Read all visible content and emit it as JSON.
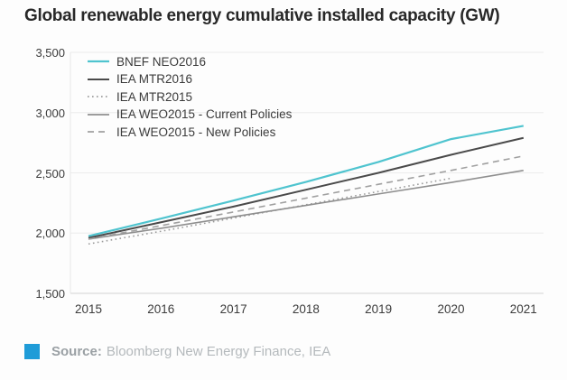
{
  "header": {
    "title": "Global renewable energy cumulative installed capacity (GW)"
  },
  "chart_data": {
    "type": "line",
    "title": "Global renewable energy cumulative installed capacity (GW)",
    "categories": [
      "2015",
      "2016",
      "2017",
      "2018",
      "2019",
      "2020",
      "2021"
    ],
    "series": [
      {
        "name": "BNEF NEO2016",
        "color": "#4fc4cf",
        "line_style": "solid",
        "stroke_width": 2.2,
        "values": [
          1975,
          2120,
          2270,
          2425,
          2590,
          2780,
          2890
        ]
      },
      {
        "name": "IEA MTR2016",
        "color": "#4a4a4a",
        "line_style": "solid",
        "stroke_width": 2,
        "values": [
          1960,
          2090,
          2220,
          2360,
          2500,
          2650,
          2790
        ]
      },
      {
        "name": "IEA MTR2015",
        "color": "#9b9b9b",
        "line_style": "dotted",
        "stroke_width": 1.6,
        "values": [
          1910,
          2015,
          2125,
          2235,
          2345,
          2455,
          null
        ]
      },
      {
        "name": "IEA WEO2015 - Current Policies",
        "color": "#8f8f8f",
        "line_style": "solid",
        "stroke_width": 1.6,
        "values": [
          1950,
          2040,
          2135,
          2230,
          2325,
          2420,
          2520
        ]
      },
      {
        "name": "IEA WEO2015 - New Policies",
        "color": "#a0a0a0",
        "line_style": "dashed",
        "stroke_width": 1.6,
        "values": [
          1950,
          2062,
          2175,
          2290,
          2405,
          2520,
          2640
        ]
      }
    ],
    "ylim": [
      1500,
      3500
    ],
    "yticks": [
      3500,
      3000,
      2500,
      2000,
      1500
    ],
    "ytick_labels": [
      "3,500",
      "3,000",
      "2,500",
      "2,000",
      "1,500"
    ],
    "grid": true,
    "legend_position": "inside-top-left"
  },
  "footer": {
    "source_label": "Source:",
    "source_text": "Bloomberg New Energy Finance, IEA",
    "square_color": "#1f9cd8"
  }
}
